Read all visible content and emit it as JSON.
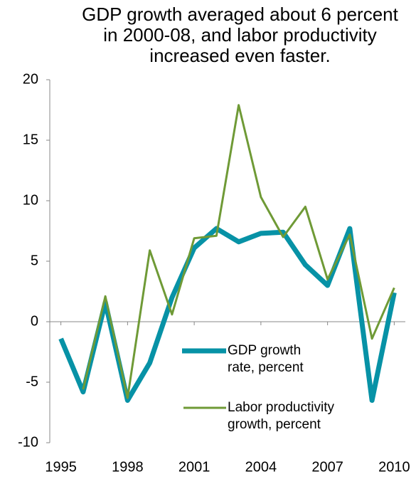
{
  "chart_data": {
    "type": "line",
    "title": "GDP growth averaged about 6 percent in 2000-08, and labor productivity increased even faster.",
    "x": [
      1995,
      1996,
      1997,
      1998,
      1999,
      2000,
      2001,
      2002,
      2003,
      2004,
      2005,
      2006,
      2007,
      2008,
      2009,
      2010
    ],
    "series": [
      {
        "name": "GDP growth rate, percent",
        "color": "#0792a6",
        "width": 7,
        "values": [
          -1.4,
          -5.8,
          1.6,
          -6.5,
          -3.4,
          2.0,
          6.1,
          7.7,
          6.6,
          7.3,
          7.4,
          4.7,
          3.0,
          7.7,
          -6.5,
          2.4
        ]
      },
      {
        "name": "Labor productivity growth, percent",
        "color": "#6f9a36",
        "width": 3,
        "values": [
          null,
          -5.6,
          2.1,
          -6.3,
          5.9,
          0.6,
          6.9,
          7.1,
          17.9,
          10.3,
          7.0,
          9.5,
          3.5,
          7.2,
          -1.4,
          2.8
        ]
      }
    ],
    "xlim": [
      1994.5,
      2010.5
    ],
    "xticks": [
      1995,
      1998,
      2001,
      2004,
      2007,
      2010
    ],
    "ylim": [
      -10,
      20
    ],
    "yticks": [
      -10,
      -5,
      0,
      5,
      10,
      15,
      20
    ],
    "grid": false
  }
}
